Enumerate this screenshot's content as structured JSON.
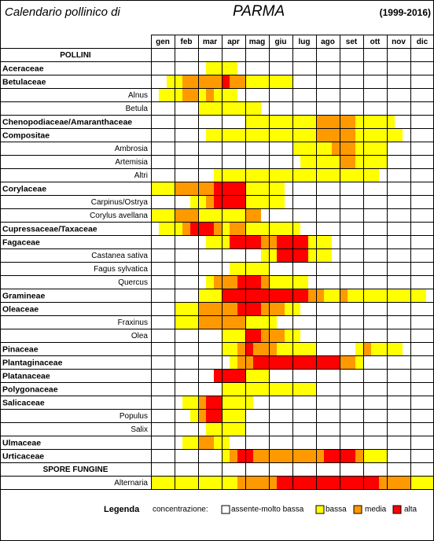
{
  "header": {
    "title": "Calendario pollinico di",
    "city": "PARMA",
    "period": "(1999-2016)"
  },
  "months": [
    "gen",
    "feb",
    "mar",
    "apr",
    "mag",
    "giu",
    "lug",
    "ago",
    "set",
    "ott",
    "nov",
    "dic"
  ],
  "rows": [
    {
      "label": "POLLINI",
      "kind": "section"
    },
    {
      "label": "Aceraceae",
      "kind": "family",
      "levels": [
        0,
        0,
        0,
        0,
        0,
        0,
        0,
        1,
        1,
        1,
        1,
        0,
        0,
        0,
        0,
        0,
        0,
        0,
        0,
        0,
        0,
        0,
        0,
        0,
        0,
        0,
        0,
        0,
        0,
        0,
        0,
        0,
        0,
        0,
        0,
        0
      ]
    },
    {
      "label": "Betulaceae",
      "kind": "family",
      "levels": [
        0,
        0,
        1,
        1,
        2,
        2,
        2,
        2,
        2,
        3,
        2,
        2,
        1,
        1,
        1,
        1,
        1,
        1,
        0,
        0,
        0,
        0,
        0,
        0,
        0,
        0,
        0,
        0,
        0,
        0,
        0,
        0,
        0,
        0,
        0,
        0
      ]
    },
    {
      "label": "Alnus",
      "kind": "species",
      "levels": [
        0,
        1,
        1,
        1,
        2,
        2,
        1,
        2,
        1,
        1,
        1,
        0,
        0,
        0,
        0,
        0,
        0,
        0,
        0,
        0,
        0,
        0,
        0,
        0,
        0,
        0,
        0,
        0,
        0,
        0,
        0,
        0,
        0,
        0,
        0,
        0
      ]
    },
    {
      "label": "Betula",
      "kind": "species",
      "levels": [
        0,
        0,
        0,
        0,
        0,
        0,
        1,
        1,
        1,
        1,
        1,
        1,
        1,
        1,
        0,
        0,
        0,
        0,
        0,
        0,
        0,
        0,
        0,
        0,
        0,
        0,
        0,
        0,
        0,
        0,
        0,
        0,
        0,
        0,
        0,
        0
      ]
    },
    {
      "label": "Chenopodiaceae/Amaranthaceae",
      "kind": "family",
      "levels": [
        0,
        0,
        0,
        0,
        0,
        0,
        0,
        0,
        0,
        0,
        0,
        0,
        1,
        1,
        1,
        1,
        1,
        1,
        1,
        1,
        1,
        2,
        2,
        2,
        2,
        2,
        1,
        1,
        1,
        1,
        1,
        0,
        0,
        0,
        0,
        0
      ]
    },
    {
      "label": "Compositae",
      "kind": "family",
      "levels": [
        0,
        0,
        0,
        0,
        0,
        0,
        0,
        1,
        1,
        1,
        1,
        1,
        1,
        1,
        1,
        1,
        1,
        1,
        1,
        1,
        1,
        2,
        2,
        2,
        2,
        2,
        1,
        1,
        1,
        1,
        1,
        1,
        0,
        0,
        0,
        0
      ]
    },
    {
      "label": "Ambrosia",
      "kind": "species",
      "levels": [
        0,
        0,
        0,
        0,
        0,
        0,
        0,
        0,
        0,
        0,
        0,
        0,
        0,
        0,
        0,
        0,
        0,
        0,
        1,
        1,
        1,
        1,
        1,
        2,
        2,
        2,
        1,
        1,
        1,
        1,
        0,
        0,
        0,
        0,
        0,
        0
      ]
    },
    {
      "label": "Artemisia",
      "kind": "species",
      "levels": [
        0,
        0,
        0,
        0,
        0,
        0,
        0,
        0,
        0,
        0,
        0,
        0,
        0,
        0,
        0,
        0,
        0,
        0,
        0,
        1,
        1,
        1,
        1,
        1,
        2,
        2,
        1,
        1,
        1,
        1,
        0,
        0,
        0,
        0,
        0,
        0
      ]
    },
    {
      "label": "Altri",
      "kind": "species",
      "levels": [
        0,
        0,
        0,
        0,
        0,
        0,
        0,
        0,
        1,
        1,
        1,
        1,
        1,
        1,
        1,
        1,
        1,
        1,
        1,
        1,
        1,
        1,
        1,
        1,
        1,
        1,
        1,
        1,
        1,
        0,
        0,
        0,
        0,
        0,
        0,
        0
      ]
    },
    {
      "label": "Corylaceae",
      "kind": "family",
      "levels": [
        1,
        1,
        1,
        2,
        2,
        2,
        2,
        2,
        3,
        3,
        3,
        3,
        1,
        1,
        1,
        1,
        1,
        0,
        0,
        0,
        0,
        0,
        0,
        0,
        0,
        0,
        0,
        0,
        0,
        0,
        0,
        0,
        0,
        0,
        0,
        0
      ]
    },
    {
      "label": "Carpinus/Ostrya",
      "kind": "species",
      "levels": [
        0,
        0,
        0,
        0,
        0,
        1,
        1,
        2,
        3,
        3,
        3,
        3,
        1,
        1,
        1,
        1,
        1,
        0,
        0,
        0,
        0,
        0,
        0,
        0,
        0,
        0,
        0,
        0,
        0,
        0,
        0,
        0,
        0,
        0,
        0,
        0
      ]
    },
    {
      "label": "Corylus avellana",
      "kind": "species",
      "levels": [
        1,
        1,
        1,
        2,
        2,
        2,
        1,
        1,
        1,
        1,
        1,
        1,
        2,
        2,
        0,
        0,
        0,
        0,
        0,
        0,
        0,
        0,
        0,
        0,
        0,
        0,
        0,
        0,
        0,
        0,
        0,
        0,
        0,
        0,
        0,
        0
      ]
    },
    {
      "label": "Cupressaceae/Taxaceae",
      "kind": "family",
      "levels": [
        0,
        1,
        1,
        1,
        2,
        3,
        3,
        3,
        2,
        1,
        2,
        2,
        1,
        1,
        1,
        1,
        1,
        1,
        1,
        0,
        0,
        0,
        0,
        0,
        0,
        0,
        0,
        0,
        0,
        0,
        0,
        0,
        0,
        0,
        0,
        0
      ]
    },
    {
      "label": "Fagaceae",
      "kind": "family",
      "levels": [
        0,
        0,
        0,
        0,
        0,
        0,
        0,
        1,
        1,
        1,
        3,
        3,
        3,
        3,
        2,
        2,
        3,
        3,
        3,
        3,
        1,
        1,
        1,
        0,
        0,
        0,
        0,
        0,
        0,
        0,
        0,
        0,
        0,
        0,
        0,
        0
      ]
    },
    {
      "label": "Castanea sativa",
      "kind": "species",
      "levels": [
        0,
        0,
        0,
        0,
        0,
        0,
        0,
        0,
        0,
        0,
        0,
        0,
        0,
        0,
        1,
        1,
        3,
        3,
        3,
        3,
        1,
        1,
        1,
        0,
        0,
        0,
        0,
        0,
        0,
        0,
        0,
        0,
        0,
        0,
        0,
        0
      ]
    },
    {
      "label": "Fagus sylvatica",
      "kind": "species",
      "levels": [
        0,
        0,
        0,
        0,
        0,
        0,
        0,
        0,
        0,
        0,
        1,
        1,
        1,
        1,
        1,
        0,
        0,
        0,
        0,
        0,
        0,
        0,
        0,
        0,
        0,
        0,
        0,
        0,
        0,
        0,
        0,
        0,
        0,
        0,
        0,
        0
      ]
    },
    {
      "label": "Quercus",
      "kind": "species",
      "levels": [
        0,
        0,
        0,
        0,
        0,
        0,
        0,
        1,
        2,
        2,
        2,
        3,
        3,
        3,
        2,
        1,
        1,
        1,
        1,
        1,
        0,
        0,
        0,
        0,
        0,
        0,
        0,
        0,
        0,
        0,
        0,
        0,
        0,
        0,
        0,
        0
      ]
    },
    {
      "label": "Gramineae",
      "kind": "family",
      "levels": [
        0,
        0,
        0,
        0,
        0,
        0,
        1,
        1,
        1,
        3,
        3,
        3,
        3,
        3,
        3,
        3,
        3,
        3,
        3,
        3,
        2,
        2,
        1,
        1,
        2,
        1,
        1,
        1,
        1,
        1,
        1,
        1,
        1,
        1,
        1,
        0
      ]
    },
    {
      "label": "Oleaceae",
      "kind": "family",
      "levels": [
        0,
        0,
        0,
        1,
        1,
        1,
        2,
        2,
        2,
        2,
        2,
        3,
        3,
        3,
        2,
        2,
        2,
        1,
        1,
        0,
        0,
        0,
        0,
        0,
        0,
        0,
        0,
        0,
        0,
        0,
        0,
        0,
        0,
        0,
        0,
        0
      ]
    },
    {
      "label": "Fraxinus",
      "kind": "species",
      "levels": [
        0,
        0,
        0,
        1,
        1,
        1,
        2,
        2,
        2,
        2,
        2,
        2,
        1,
        1,
        1,
        1,
        0,
        0,
        0,
        0,
        0,
        0,
        0,
        0,
        0,
        0,
        0,
        0,
        0,
        0,
        0,
        0,
        0,
        0,
        0,
        0
      ]
    },
    {
      "label": "Olea",
      "kind": "species",
      "levels": [
        0,
        0,
        0,
        0,
        0,
        0,
        0,
        0,
        0,
        1,
        1,
        1,
        3,
        3,
        2,
        2,
        2,
        1,
        1,
        0,
        0,
        0,
        0,
        0,
        0,
        0,
        0,
        0,
        0,
        0,
        0,
        0,
        0,
        0,
        0,
        0
      ]
    },
    {
      "label": "Pinaceae",
      "kind": "family",
      "levels": [
        0,
        0,
        0,
        0,
        0,
        0,
        0,
        0,
        0,
        1,
        1,
        2,
        3,
        2,
        2,
        2,
        1,
        1,
        1,
        1,
        1,
        0,
        0,
        0,
        0,
        0,
        1,
        2,
        1,
        1,
        1,
        1,
        0,
        0,
        0,
        0
      ]
    },
    {
      "label": "Plantaginaceae",
      "kind": "family",
      "levels": [
        0,
        0,
        0,
        0,
        0,
        0,
        0,
        0,
        0,
        0,
        1,
        2,
        2,
        3,
        3,
        3,
        3,
        3,
        3,
        3,
        3,
        3,
        3,
        3,
        2,
        2,
        1,
        0,
        0,
        0,
        0,
        0,
        0,
        0,
        0,
        0
      ]
    },
    {
      "label": "Platanaceae",
      "kind": "family",
      "levels": [
        0,
        0,
        0,
        0,
        0,
        0,
        0,
        0,
        3,
        3,
        3,
        3,
        1,
        1,
        1,
        0,
        0,
        0,
        0,
        0,
        0,
        0,
        0,
        0,
        0,
        0,
        0,
        0,
        0,
        0,
        0,
        0,
        0,
        0,
        0,
        0
      ]
    },
    {
      "label": "Polygonaceae",
      "kind": "family",
      "levels": [
        0,
        0,
        0,
        0,
        0,
        0,
        0,
        0,
        0,
        1,
        1,
        1,
        1,
        1,
        1,
        1,
        1,
        1,
        1,
        1,
        1,
        0,
        0,
        0,
        0,
        0,
        0,
        0,
        0,
        0,
        0,
        0,
        0,
        0,
        0,
        0
      ]
    },
    {
      "label": "Salicaceae",
      "kind": "family",
      "levels": [
        0,
        0,
        0,
        0,
        1,
        1,
        2,
        3,
        3,
        1,
        1,
        1,
        1,
        0,
        0,
        0,
        0,
        0,
        0,
        0,
        0,
        0,
        0,
        0,
        0,
        0,
        0,
        0,
        0,
        0,
        0,
        0,
        0,
        0,
        0,
        0
      ]
    },
    {
      "label": "Populus",
      "kind": "species",
      "levels": [
        0,
        0,
        0,
        0,
        0,
        1,
        2,
        3,
        3,
        1,
        1,
        1,
        0,
        0,
        0,
        0,
        0,
        0,
        0,
        0,
        0,
        0,
        0,
        0,
        0,
        0,
        0,
        0,
        0,
        0,
        0,
        0,
        0,
        0,
        0,
        0
      ]
    },
    {
      "label": "Salix",
      "kind": "species",
      "levels": [
        0,
        0,
        0,
        0,
        0,
        0,
        0,
        1,
        1,
        1,
        1,
        1,
        0,
        0,
        0,
        0,
        0,
        0,
        0,
        0,
        0,
        0,
        0,
        0,
        0,
        0,
        0,
        0,
        0,
        0,
        0,
        0,
        0,
        0,
        0,
        0
      ]
    },
    {
      "label": "Ulmaceae",
      "kind": "family",
      "levels": [
        0,
        0,
        0,
        0,
        1,
        1,
        2,
        2,
        1,
        1,
        0,
        0,
        0,
        0,
        0,
        0,
        0,
        0,
        0,
        0,
        0,
        0,
        0,
        0,
        0,
        0,
        0,
        0,
        0,
        0,
        0,
        0,
        0,
        0,
        0,
        0
      ]
    },
    {
      "label": "Urticaceae",
      "kind": "family",
      "levels": [
        0,
        0,
        0,
        0,
        0,
        0,
        0,
        0,
        0,
        1,
        2,
        3,
        3,
        2,
        2,
        2,
        2,
        2,
        2,
        2,
        2,
        2,
        3,
        3,
        3,
        3,
        2,
        1,
        1,
        1,
        0,
        0,
        0,
        0,
        0,
        0
      ]
    },
    {
      "label": "SPORE FUNGINE",
      "kind": "section"
    },
    {
      "label": "Alternaria",
      "kind": "species",
      "levels": [
        1,
        1,
        1,
        1,
        1,
        1,
        1,
        1,
        1,
        1,
        1,
        2,
        2,
        2,
        2,
        2,
        3,
        3,
        3,
        3,
        3,
        3,
        3,
        3,
        3,
        3,
        3,
        3,
        3,
        2,
        2,
        2,
        2,
        1,
        1,
        1
      ]
    }
  ],
  "legend": {
    "title": "Legenda",
    "subtitle": "concentrazione:",
    "items": [
      {
        "label": "assente-molto bassa",
        "color": "#ffffff"
      },
      {
        "label": "bassa",
        "color": "#ffff00"
      },
      {
        "label": "media",
        "color": "#ff9900"
      },
      {
        "label": "alta",
        "color": "#ff0000"
      }
    ]
  }
}
